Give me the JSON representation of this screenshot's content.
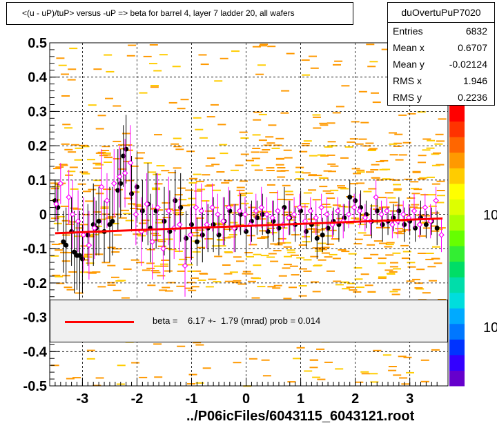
{
  "chart_data": {
    "type": "scatter",
    "title": "<(u - uP)/tuP> versus  -uP => beta for barrel 4, layer 7 ladder 20, all wafers",
    "xlim": [
      -3.6,
      3.7
    ],
    "ylim": [
      -0.5,
      0.5
    ],
    "x_ticks": [
      "-3",
      "-2",
      "-1",
      "0",
      "1",
      "2",
      "3"
    ],
    "y_ticks": [
      "-0.5",
      "-0.4",
      "-0.3",
      "-0.2",
      "-0.1",
      "0",
      "0.1",
      "0.2",
      "0.3",
      "0.4",
      "0.5"
    ],
    "grid": true,
    "colorbar_ticks": [
      "10",
      "10"
    ],
    "stats": {
      "name": "duOvertuPuP7020",
      "rows": [
        {
          "label": "Entries",
          "value": "6832"
        },
        {
          "label": "Mean x",
          "value": "0.6707"
        },
        {
          "label": "Mean y",
          "value": "-0.02124"
        },
        {
          "label": "RMS x",
          "value": "1.946"
        },
        {
          "label": "RMS y",
          "value": "0.2236"
        }
      ]
    },
    "fit": {
      "x": [
        -3.5,
        3.6
      ],
      "y": [
        -0.055,
        -0.012
      ],
      "color": "#ff0000",
      "legend": "beta =    6.17 +-  1.79 (mrad) prob = 0.014"
    },
    "series": [
      {
        "marker": "filled-circle",
        "color": "#000000",
        "x": [
          -3.5,
          -3.45,
          -3.35,
          -3.3,
          -3.2,
          -3.15,
          -3.1,
          -3.05,
          -3.0,
          -2.9,
          -2.8,
          -2.75,
          -2.7,
          -2.6,
          -2.5,
          -2.45,
          -2.35,
          -2.3,
          -2.25,
          -2.2,
          -2.1,
          -2.0,
          -1.9,
          -1.8,
          -1.75,
          -1.65,
          -1.5,
          -1.4,
          -1.3,
          -1.2,
          -1.1,
          -1.0,
          -0.9,
          -0.8,
          -0.7,
          -0.6,
          -0.5,
          -0.4,
          -0.3,
          -0.2,
          -0.1,
          0.0,
          0.1,
          0.2,
          0.3,
          0.4,
          0.5,
          0.6,
          0.7,
          0.8,
          0.9,
          1.0,
          1.1,
          1.2,
          1.3,
          1.4,
          1.5,
          1.6,
          1.7,
          1.8,
          1.9,
          2.0,
          2.1,
          2.2,
          2.3,
          2.4,
          2.5,
          2.6,
          2.7,
          2.8,
          2.9,
          3.0,
          3.1,
          3.2,
          3.3,
          3.4,
          3.5
        ],
        "y": [
          0.04,
          0.02,
          -0.08,
          -0.09,
          -0.05,
          -0.11,
          -0.12,
          -0.12,
          -0.13,
          -0.06,
          -0.03,
          -0.04,
          -0.02,
          -0.05,
          -0.03,
          -0.02,
          0.07,
          0.09,
          0.17,
          0.19,
          0.06,
          0.08,
          0.01,
          0.03,
          -0.04,
          0.01,
          -0.02,
          -0.05,
          0.04,
          0.02,
          -0.07,
          -0.03,
          -0.08,
          -0.06,
          -0.04,
          -0.03,
          -0.06,
          -0.02,
          0.01,
          -0.04,
          0.0,
          -0.05,
          -0.02,
          -0.01,
          0.0,
          -0.05,
          -0.02,
          -0.04,
          0.02,
          -0.01,
          -0.03,
          0.01,
          -0.05,
          -0.03,
          -0.07,
          -0.06,
          -0.04,
          -0.02,
          -0.03,
          -0.01,
          0.05,
          0.04,
          0.02,
          0.0,
          -0.02,
          0.01,
          -0.03,
          -0.02,
          -0.01,
          0.01,
          -0.03,
          -0.02,
          -0.04,
          -0.01,
          -0.03,
          -0.02,
          -0.04
        ],
        "err": [
          0.06,
          0.07,
          0.09,
          0.11,
          0.1,
          0.12,
          0.1,
          0.13,
          0.1,
          0.09,
          0.12,
          0.08,
          0.1,
          0.09,
          0.11,
          0.1,
          0.12,
          0.1,
          0.09,
          0.1,
          0.11,
          0.1,
          0.09,
          0.12,
          0.1,
          0.11,
          0.1,
          0.12,
          0.09,
          0.1,
          0.08,
          0.1,
          0.07,
          0.08,
          0.07,
          0.08,
          0.06,
          0.07,
          0.06,
          0.07,
          0.06,
          0.07,
          0.06,
          0.05,
          0.06,
          0.05,
          0.06,
          0.05,
          0.06,
          0.05,
          0.05,
          0.06,
          0.05,
          0.05,
          0.06,
          0.05,
          0.05,
          0.04,
          0.05,
          0.04,
          0.05,
          0.04,
          0.05,
          0.04,
          0.05,
          0.04,
          0.05,
          0.04,
          0.04,
          0.04,
          0.05,
          0.04,
          0.04,
          0.05,
          0.04,
          0.04,
          0.05
        ]
      },
      {
        "marker": "open-diamond",
        "color": "#ff00ff",
        "x": [
          -3.48,
          -3.4,
          -3.25,
          -3.18,
          -3.08,
          -2.98,
          -2.88,
          -2.78,
          -2.65,
          -2.55,
          -2.42,
          -2.32,
          -2.22,
          -2.12,
          -2.02,
          -1.92,
          -1.82,
          -1.72,
          -1.62,
          -1.52,
          -1.42,
          -1.32,
          -1.22,
          -1.12,
          -1.02,
          -0.92,
          -0.82,
          -0.72,
          -0.62,
          -0.52,
          -0.42,
          -0.32,
          -0.22,
          -0.12,
          -0.02,
          0.08,
          0.18,
          0.28,
          0.38,
          0.48,
          0.58,
          0.68,
          0.78,
          0.88,
          0.98,
          1.08,
          1.18,
          1.28,
          1.38,
          1.48,
          1.58,
          1.68,
          1.78,
          1.88,
          1.98,
          2.08,
          2.18,
          2.28,
          2.38,
          2.48,
          2.58,
          2.68,
          2.78,
          2.88,
          2.98,
          3.08,
          3.18,
          3.28,
          3.38,
          3.48,
          3.58
        ],
        "y": [
          0.03,
          0.09,
          0.05,
          0.0,
          -0.02,
          -0.06,
          -0.09,
          -0.04,
          0.08,
          0.04,
          0.09,
          0.11,
          0.12,
          0.15,
          0.0,
          -0.05,
          0.03,
          -0.08,
          0.02,
          -0.1,
          0.01,
          -0.04,
          -0.03,
          -0.15,
          -0.06,
          0.02,
          0.01,
          -0.03,
          0.02,
          0.0,
          -0.02,
          0.02,
          -0.04,
          0.01,
          0.0,
          -0.03,
          0.01,
          0.02,
          0.0,
          -0.01,
          0.01,
          -0.03,
          -0.01,
          0.0,
          0.02,
          -0.02,
          0.01,
          -0.01,
          0.02,
          0.0,
          -0.03,
          0.01,
          -0.02,
          0.0,
          0.02,
          0.01,
          -0.01,
          -0.02,
          0.05,
          0.0,
          0.01,
          -0.03,
          -0.02,
          0.0,
          -0.01,
          0.01,
          -0.03,
          0.02,
          -0.02,
          0.04,
          -0.06
        ],
        "err": [
          0.05,
          0.06,
          0.08,
          0.1,
          0.09,
          0.11,
          0.1,
          0.09,
          0.11,
          0.08,
          0.1,
          0.09,
          0.1,
          0.11,
          0.09,
          0.1,
          0.09,
          0.11,
          0.1,
          0.09,
          0.1,
          0.09,
          0.08,
          0.09,
          0.08,
          0.07,
          0.08,
          0.07,
          0.07,
          0.06,
          0.07,
          0.06,
          0.07,
          0.06,
          0.05,
          0.06,
          0.05,
          0.06,
          0.05,
          0.05,
          0.06,
          0.05,
          0.05,
          0.05,
          0.04,
          0.05,
          0.04,
          0.05,
          0.04,
          0.05,
          0.04,
          0.04,
          0.05,
          0.04,
          0.04,
          0.05,
          0.04,
          0.04,
          0.05,
          0.04,
          0.04,
          0.04,
          0.05,
          0.04,
          0.04,
          0.05,
          0.04,
          0.04,
          0.05,
          0.04,
          0.05
        ]
      }
    ]
  },
  "footer": "../P06icFiles/6043115_6043121.root",
  "colors": {
    "point": "#000000",
    "diamond": "#ff00ff",
    "fit": "#ff0000",
    "cell_dark": "#ff9900",
    "cell_light": "#ffcc00"
  }
}
